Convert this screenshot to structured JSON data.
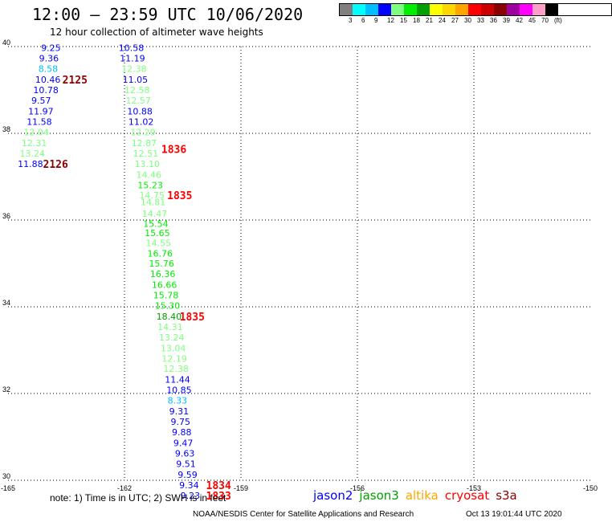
{
  "header": {
    "title": "12:00 – 23:59 UTC 10/06/2020",
    "subtitle": "12 hour collection of altimeter wave heights"
  },
  "color_scale": {
    "colors": [
      "#808080",
      "#00ffff",
      "#00bfff",
      "#0000ff",
      "#7fff7f",
      "#00ee00",
      "#00a000",
      "#ffff00",
      "#ffd700",
      "#ffa500",
      "#ff0000",
      "#cc0000",
      "#8b0000",
      "#a000a0",
      "#ff00ff",
      "#ff9ec8",
      "#000000"
    ],
    "labels": [
      "3",
      "6",
      "9",
      "12",
      "15",
      "18",
      "21",
      "24",
      "27",
      "30",
      "33",
      "36",
      "39",
      "42",
      "45",
      "70",
      "(ft)"
    ]
  },
  "map": {
    "lat_ticks": [
      "40",
      "38",
      "36",
      "34",
      "32",
      "30"
    ],
    "lon_ticks": [
      "-165",
      "-162",
      "-159",
      "-156",
      "-153",
      "-150"
    ],
    "lat_range": [
      30,
      40
    ],
    "lon_range": [
      -165,
      -150
    ],
    "observations": [
      {
        "lon": -164.15,
        "lat": 39.97,
        "v": "9.25",
        "c": "#0000ff"
      },
      {
        "lon": -164.2,
        "lat": 39.73,
        "v": "9.36",
        "c": "#0000ff"
      },
      {
        "lon": -164.22,
        "lat": 39.49,
        "v": "8.58",
        "c": "#00bfff"
      },
      {
        "lon": -164.3,
        "lat": 39.24,
        "v": "10.46",
        "c": "#0000ff"
      },
      {
        "lon": -164.35,
        "lat": 39.0,
        "v": "10.78",
        "c": "#0000ff"
      },
      {
        "lon": -164.4,
        "lat": 38.76,
        "v": "9.57",
        "c": "#0000ff"
      },
      {
        "lon": -164.48,
        "lat": 38.51,
        "v": "11.97",
        "c": "#0000ff"
      },
      {
        "lon": -164.52,
        "lat": 38.27,
        "v": "11.58",
        "c": "#0000ff"
      },
      {
        "lon": -164.6,
        "lat": 38.03,
        "v": "12.04",
        "c": "#7fff7f"
      },
      {
        "lon": -164.65,
        "lat": 37.78,
        "v": "12.31",
        "c": "#7fff7f"
      },
      {
        "lon": -164.7,
        "lat": 37.54,
        "v": "13.24",
        "c": "#7fff7f"
      },
      {
        "lon": -164.75,
        "lat": 37.3,
        "v": "11.88",
        "c": "#0000ff"
      },
      {
        "lon": -162.15,
        "lat": 39.97,
        "v": "10.58",
        "c": "#0000ff"
      },
      {
        "lon": -162.12,
        "lat": 39.73,
        "v": "11.19",
        "c": "#0000ff"
      },
      {
        "lon": -162.08,
        "lat": 39.49,
        "v": "12.38",
        "c": "#7fff7f"
      },
      {
        "lon": -162.05,
        "lat": 39.24,
        "v": "11.05",
        "c": "#0000ff"
      },
      {
        "lon": -162.0,
        "lat": 39.0,
        "v": "12.58",
        "c": "#7fff7f"
      },
      {
        "lon": -161.97,
        "lat": 38.76,
        "v": "12.57",
        "c": "#7fff7f"
      },
      {
        "lon": -161.93,
        "lat": 38.51,
        "v": "10.88",
        "c": "#0000ff"
      },
      {
        "lon": -161.9,
        "lat": 38.27,
        "v": "11.02",
        "c": "#0000ff"
      },
      {
        "lon": -161.85,
        "lat": 38.03,
        "v": "12.29",
        "c": "#7fff7f"
      },
      {
        "lon": -161.82,
        "lat": 37.78,
        "v": "12.87",
        "c": "#7fff7f"
      },
      {
        "lon": -161.78,
        "lat": 37.54,
        "v": "12.51",
        "c": "#7fff7f"
      },
      {
        "lon": -161.74,
        "lat": 37.3,
        "v": "13.10",
        "c": "#7fff7f"
      },
      {
        "lon": -161.7,
        "lat": 37.05,
        "v": "14.46",
        "c": "#7fff7f"
      },
      {
        "lon": -161.66,
        "lat": 36.81,
        "v": "15.23",
        "c": "#00ee00"
      },
      {
        "lon": -161.62,
        "lat": 36.57,
        "v": "14.75",
        "c": "#7fff7f"
      },
      {
        "lon": -161.59,
        "lat": 36.42,
        "v": "14.81",
        "c": "#7fff7f"
      },
      {
        "lon": -161.55,
        "lat": 36.15,
        "v": "14.47",
        "c": "#7fff7f"
      },
      {
        "lon": -161.52,
        "lat": 35.92,
        "v": "15.54",
        "c": "#00ee00"
      },
      {
        "lon": -161.48,
        "lat": 35.7,
        "v": "15.65",
        "c": "#00ee00"
      },
      {
        "lon": -161.45,
        "lat": 35.47,
        "v": "14.55",
        "c": "#7fff7f"
      },
      {
        "lon": -161.41,
        "lat": 35.23,
        "v": "16.76",
        "c": "#00ee00"
      },
      {
        "lon": -161.37,
        "lat": 35.0,
        "v": "15.76",
        "c": "#00ee00"
      },
      {
        "lon": -161.34,
        "lat": 34.76,
        "v": "16.36",
        "c": "#00ee00"
      },
      {
        "lon": -161.3,
        "lat": 34.51,
        "v": "16.66",
        "c": "#00ee00"
      },
      {
        "lon": -161.26,
        "lat": 34.27,
        "v": "15.78",
        "c": "#00ee00"
      },
      {
        "lon": -161.22,
        "lat": 34.03,
        "v": "15.30",
        "c": "#00ee00"
      },
      {
        "lon": -161.18,
        "lat": 33.78,
        "v": "18.40",
        "c": "#00a000"
      },
      {
        "lon": -161.15,
        "lat": 33.54,
        "v": "14.31",
        "c": "#7fff7f"
      },
      {
        "lon": -161.11,
        "lat": 33.3,
        "v": "13.24",
        "c": "#7fff7f"
      },
      {
        "lon": -161.07,
        "lat": 33.05,
        "v": "13.04",
        "c": "#7fff7f"
      },
      {
        "lon": -161.04,
        "lat": 32.81,
        "v": "12.19",
        "c": "#7fff7f"
      },
      {
        "lon": -161.0,
        "lat": 32.57,
        "v": "12.38",
        "c": "#7fff7f"
      },
      {
        "lon": -160.96,
        "lat": 32.32,
        "v": "11.44",
        "c": "#0000ff"
      },
      {
        "lon": -160.92,
        "lat": 32.08,
        "v": "10.85",
        "c": "#0000ff"
      },
      {
        "lon": -160.89,
        "lat": 31.84,
        "v": "8.33",
        "c": "#00bfff"
      },
      {
        "lon": -160.85,
        "lat": 31.59,
        "v": "9.31",
        "c": "#0000ff"
      },
      {
        "lon": -160.81,
        "lat": 31.35,
        "v": "9.75",
        "c": "#0000ff"
      },
      {
        "lon": -160.78,
        "lat": 31.11,
        "v": "9.88",
        "c": "#0000ff"
      },
      {
        "lon": -160.74,
        "lat": 30.86,
        "v": "9.47",
        "c": "#0000ff"
      },
      {
        "lon": -160.7,
        "lat": 30.62,
        "v": "9.63",
        "c": "#0000ff"
      },
      {
        "lon": -160.67,
        "lat": 30.38,
        "v": "9.51",
        "c": "#0000ff"
      },
      {
        "lon": -160.63,
        "lat": 30.13,
        "v": "9.59",
        "c": "#0000ff"
      },
      {
        "lon": -160.59,
        "lat": 29.89,
        "v": "9.34",
        "c": "#0000ff"
      },
      {
        "lon": -160.56,
        "lat": 29.65,
        "v": "9.23",
        "c": "#0000ff"
      }
    ],
    "time_labels": [
      {
        "lon": -163.6,
        "lat": 39.24,
        "v": "2125",
        "c": "#8b0000"
      },
      {
        "lon": -164.1,
        "lat": 37.3,
        "v": "2126",
        "c": "#8b0000"
      },
      {
        "lon": -161.05,
        "lat": 37.64,
        "v": "1836",
        "c": "#ff0000"
      },
      {
        "lon": -160.9,
        "lat": 36.57,
        "v": "1835",
        "c": "#ff0000"
      },
      {
        "lon": -160.58,
        "lat": 33.78,
        "v": "1835",
        "c": "#ff0000"
      },
      {
        "lon": -159.9,
        "lat": 29.89,
        "v": "1834",
        "c": "#ff0000"
      },
      {
        "lon": -159.9,
        "lat": 29.65,
        "v": "1833",
        "c": "#ff0000"
      }
    ]
  },
  "footer": {
    "note": "note: 1) Time is in UTC; 2) SWH is in feet",
    "satellites": [
      {
        "name": "jason2",
        "color": "#0000ff"
      },
      {
        "name": "jason3",
        "color": "#00a000"
      },
      {
        "name": "altika",
        "color": "#ffa500"
      },
      {
        "name": "cryosat",
        "color": "#ff0000"
      },
      {
        "name": "s3a",
        "color": "#8b0000"
      }
    ],
    "credit": "NOAA/NESDIS Center for Satellite Applications and Research",
    "timestamp": "Oct 13 19:01:44 UTC 2020"
  }
}
